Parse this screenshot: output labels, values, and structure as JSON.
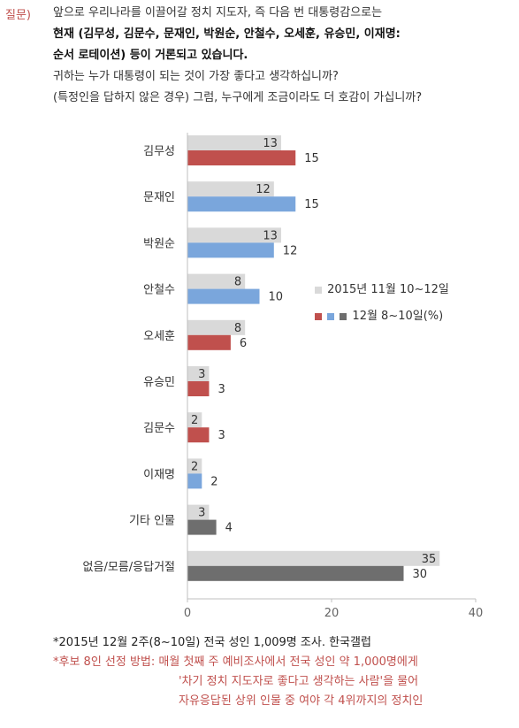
{
  "question": {
    "label": "질문)",
    "line1": "앞으로 우리나라를 이끌어갈 정치 지도자, 즉 다음 번 대통령감으로는",
    "line2": "현재 (김무성, 김문수, 문재인, 박원순, 안철수, 오세훈, 유승민, 이재명:",
    "line3": "순서 로테이션) 등이 거론되고 있습니다.",
    "line4": "귀하는 누가 대통령이 되는 것이 가장 좋다고 생각하십니까?",
    "line5": "(특정인을 답하지 않은 경우) 그럼, 누구에게 조금이라도 더 호감이 가십니까?"
  },
  "legend": {
    "prev": "2015년 11월 10~12일",
    "curr": "12월 8~10일(%)"
  },
  "colors": {
    "prev": "#d9d9d9",
    "red": "#c0504d",
    "blue": "#7aa6dc",
    "gray": "#6e6e6e",
    "axis": "#bfbfbf",
    "text": "#333333"
  },
  "chart_data": {
    "type": "bar",
    "orientation": "horizontal",
    "categories": [
      "김무성",
      "문재인",
      "박원순",
      "안철수",
      "오세훈",
      "유승민",
      "김문수",
      "이재명",
      "기타 인물",
      "없음/모름/응답거절"
    ],
    "series": [
      {
        "name": "2015년 11월 10~12일",
        "values": [
          13,
          12,
          13,
          8,
          8,
          3,
          2,
          2,
          3,
          35
        ]
      },
      {
        "name": "12월 8~10일(%)",
        "values": [
          15,
          15,
          12,
          10,
          6,
          3,
          3,
          2,
          4,
          30
        ]
      }
    ],
    "current_colors": [
      "red",
      "blue",
      "blue",
      "blue",
      "red",
      "red",
      "red",
      "blue",
      "gray",
      "gray"
    ],
    "x_ticks": [
      0,
      20,
      40
    ],
    "xlim": [
      0,
      40
    ]
  },
  "notes": {
    "n1": "*2015년 12월 2주(8~10일) 전국 성인 1,009명 조사. 한국갤럽",
    "n2": "*후보 8인 선정 방법: 매월 첫째 주 예비조사에서 전국 성인 약 1,000명에게",
    "n3": "'차기 정치 지도자로 좋다고 생각하는 사람'을 물어",
    "n4": "자유응답된 상위 인물 중 여야 각 4위까지의 정치인"
  }
}
